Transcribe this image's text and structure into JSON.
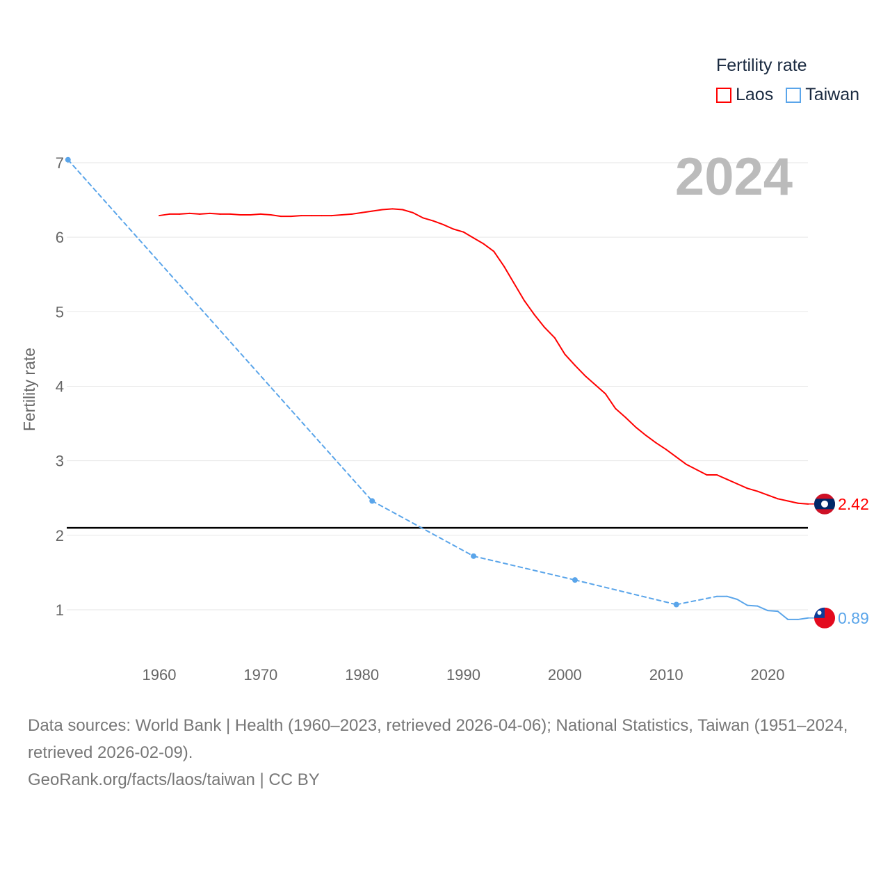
{
  "chart_data": {
    "type": "line",
    "title": "",
    "ylabel": "Fertility rate",
    "xlabel": "",
    "year_label": "2024",
    "xlim": [
      1951,
      2024
    ],
    "ylim": [
      0.5,
      7.0
    ],
    "xticks": [
      1960,
      1970,
      1980,
      1990,
      2000,
      2010,
      2020
    ],
    "yticks": [
      1,
      2,
      3,
      4,
      5,
      6,
      7
    ],
    "reference_line": 2.1,
    "legend": {
      "title": "Fertility rate",
      "placement": "top-right"
    },
    "series": [
      {
        "name": "Laos",
        "color": "#ff0000",
        "end_label": "2.42",
        "x": [
          1960,
          1961,
          1962,
          1963,
          1964,
          1965,
          1966,
          1967,
          1968,
          1969,
          1970,
          1971,
          1972,
          1973,
          1974,
          1975,
          1976,
          1977,
          1978,
          1979,
          1980,
          1981,
          1982,
          1983,
          1984,
          1985,
          1986,
          1987,
          1988,
          1989,
          1990,
          1991,
          1992,
          1993,
          1994,
          1995,
          1996,
          1997,
          1998,
          1999,
          2000,
          2001,
          2002,
          2003,
          2004,
          2005,
          2006,
          2007,
          2008,
          2009,
          2010,
          2011,
          2012,
          2013,
          2014,
          2015,
          2016,
          2017,
          2018,
          2019,
          2020,
          2021,
          2022,
          2023,
          2024
        ],
        "y": [
          6.29,
          6.31,
          6.31,
          6.32,
          6.31,
          6.32,
          6.31,
          6.31,
          6.3,
          6.3,
          6.31,
          6.3,
          6.28,
          6.28,
          6.29,
          6.29,
          6.29,
          6.29,
          6.3,
          6.31,
          6.33,
          6.35,
          6.37,
          6.38,
          6.37,
          6.33,
          6.26,
          6.22,
          6.17,
          6.11,
          6.07,
          5.99,
          5.91,
          5.81,
          5.61,
          5.38,
          5.15,
          4.96,
          4.79,
          4.65,
          4.43,
          4.28,
          4.14,
          4.02,
          3.9,
          3.7,
          3.58,
          3.45,
          3.34,
          3.24,
          3.15,
          3.05,
          2.95,
          2.88,
          2.81,
          2.81,
          2.75,
          2.69,
          2.63,
          2.59,
          2.54,
          2.49,
          2.46,
          2.43,
          2.42
        ]
      },
      {
        "name": "Taiwan",
        "color": "#5aa5ea",
        "end_label": "0.89",
        "x": [
          1951,
          1981,
          1991,
          2001,
          2011,
          2015,
          2016,
          2017,
          2018,
          2019,
          2020,
          2021,
          2022,
          2023,
          2024
        ],
        "y": [
          7.04,
          2.46,
          1.72,
          1.4,
          1.07,
          1.18,
          1.18,
          1.14,
          1.06,
          1.05,
          0.99,
          0.98,
          0.87,
          0.87,
          0.89
        ]
      }
    ]
  },
  "footer": {
    "sources": "Data sources: World Bank | Health (1960–2023, retrieved 2026-04-06); National Statistics, Taiwan (1951–2024, retrieved 2026-02-09).",
    "credit": "GeoRank.org/facts/laos/taiwan | CC BY"
  }
}
